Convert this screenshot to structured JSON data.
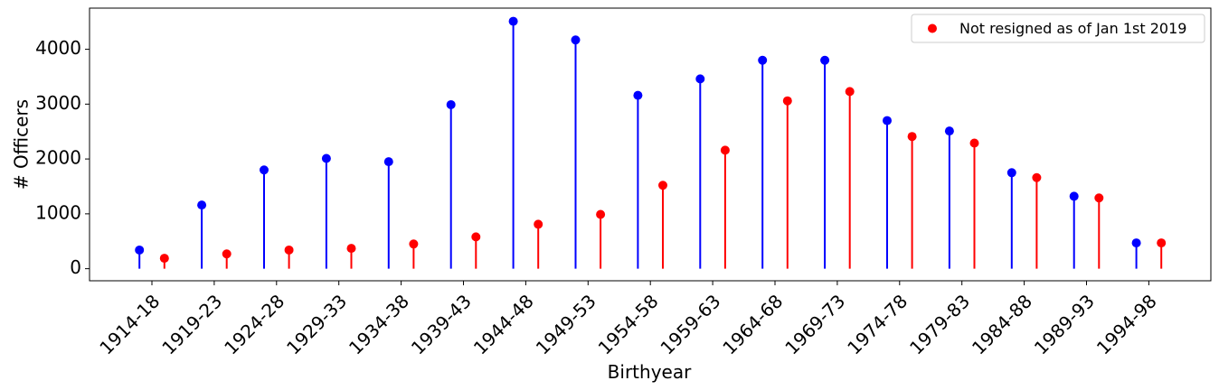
{
  "chart_data": {
    "type": "stem",
    "categories": [
      "1914-18",
      "1919-23",
      "1924-28",
      "1929-33",
      "1934-38",
      "1939-43",
      "1944-48",
      "1949-53",
      "1954-58",
      "1959-63",
      "1964-68",
      "1969-73",
      "1974-78",
      "1979-83",
      "1984-88",
      "1989-93",
      "1994-98"
    ],
    "series": [
      {
        "color": "#0000ff",
        "values": [
          340,
          1160,
          1800,
          2010,
          1950,
          2990,
          4510,
          4170,
          3160,
          3460,
          3800,
          3800,
          2700,
          2510,
          1750,
          1320,
          470
        ]
      },
      {
        "name": "Not resigned as of Jan 1st 2019",
        "color": "#ff0000",
        "values": [
          190,
          270,
          340,
          370,
          450,
          580,
          810,
          990,
          1520,
          2160,
          3060,
          3230,
          2410,
          2290,
          1660,
          1290,
          470
        ]
      }
    ],
    "xlabel": "Birthyear",
    "ylabel": "# Officers",
    "ylim": [
      -220,
      4750
    ],
    "yticks": [
      0,
      1000,
      2000,
      3000,
      4000
    ],
    "legend": {
      "entries": [
        "Not resigned as of Jan 1st 2019"
      ],
      "placement": "top-right"
    },
    "grid": false
  }
}
